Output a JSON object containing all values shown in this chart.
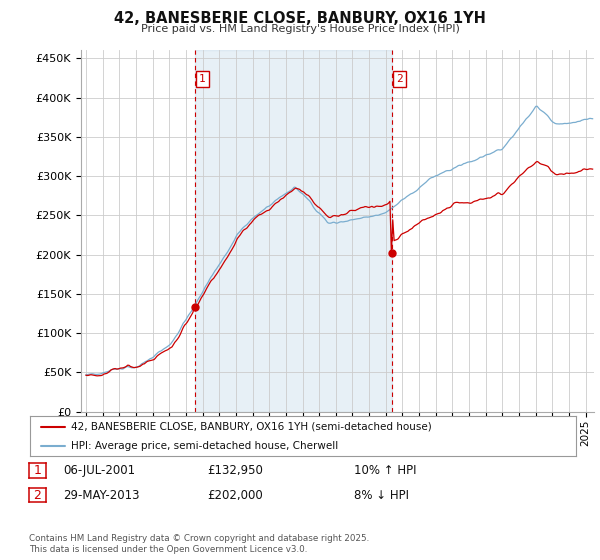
{
  "title": "42, BANESBERIE CLOSE, BANBURY, OX16 1YH",
  "subtitle": "Price paid vs. HM Land Registry's House Price Index (HPI)",
  "ylim": [
    0,
    460000
  ],
  "yticks": [
    0,
    50000,
    100000,
    150000,
    200000,
    250000,
    300000,
    350000,
    400000,
    450000
  ],
  "ytick_labels": [
    "£0",
    "£50K",
    "£100K",
    "£150K",
    "£200K",
    "£250K",
    "£300K",
    "£350K",
    "£400K",
    "£450K"
  ],
  "sale1_year": 2001.54,
  "sale1_price": 132950,
  "sale1_label": "1",
  "sale1_date_str": "06-JUL-2001",
  "sale1_price_str": "£132,950",
  "sale1_hpi_pct": "10% ↑ HPI",
  "sale2_year": 2013.37,
  "sale2_price": 202000,
  "sale2_label": "2",
  "sale2_date_str": "29-MAY-2013",
  "sale2_price_str": "£202,000",
  "sale2_hpi_pct": "8% ↓ HPI",
  "legend_line1": "42, BANESBERIE CLOSE, BANBURY, OX16 1YH (semi-detached house)",
  "legend_line2": "HPI: Average price, semi-detached house, Cherwell",
  "footnote": "Contains HM Land Registry data © Crown copyright and database right 2025.\nThis data is licensed under the Open Government Licence v3.0.",
  "red_color": "#cc0000",
  "blue_color": "#7aadcf",
  "shade_color": "#ddeeff",
  "vline_color": "#cc0000",
  "background_color": "#ffffff",
  "grid_color": "#cccccc",
  "xlim_left": 1994.7,
  "xlim_right": 2025.5
}
